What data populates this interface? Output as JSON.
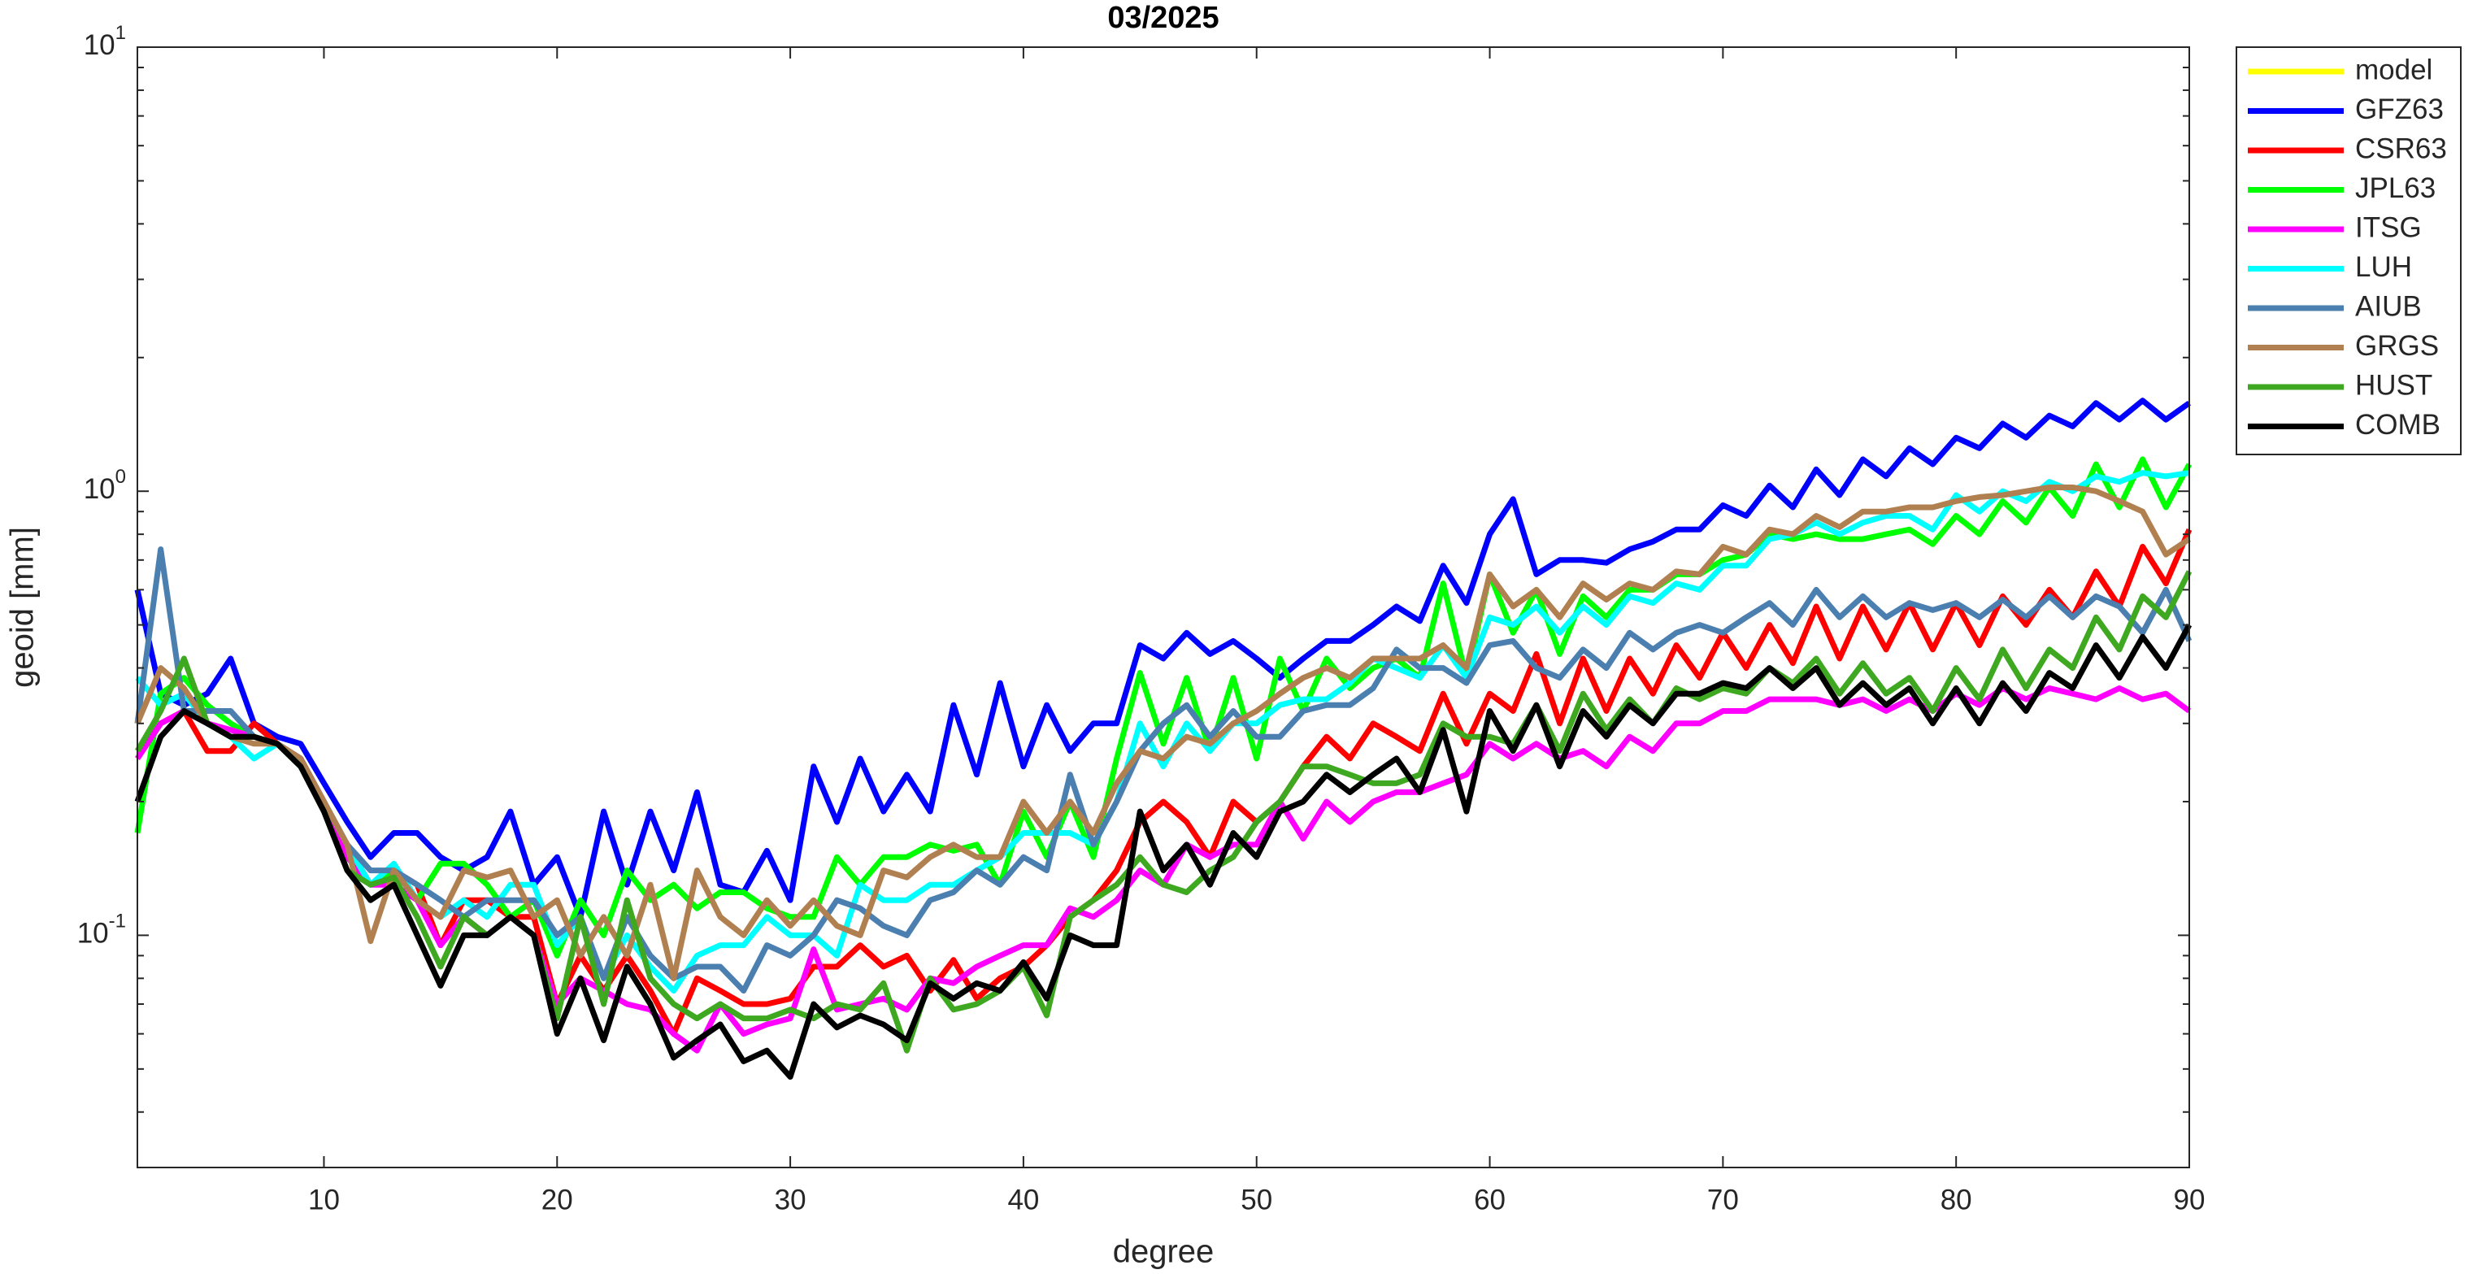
{
  "chart_data": {
    "type": "line",
    "title": "03/2025",
    "xlabel": "degree",
    "ylabel": "geoid [mm]",
    "x": [
      2,
      3,
      4,
      5,
      6,
      7,
      8,
      9,
      10,
      11,
      12,
      13,
      14,
      15,
      16,
      17,
      18,
      19,
      20,
      21,
      22,
      23,
      24,
      25,
      26,
      27,
      28,
      29,
      30,
      31,
      32,
      33,
      34,
      35,
      36,
      37,
      38,
      39,
      40,
      41,
      42,
      43,
      44,
      45,
      46,
      47,
      48,
      49,
      50,
      51,
      52,
      53,
      54,
      55,
      56,
      57,
      58,
      59,
      60,
      61,
      62,
      63,
      64,
      65,
      66,
      67,
      68,
      69,
      70,
      71,
      72,
      73,
      74,
      75,
      76,
      77,
      78,
      79,
      80,
      81,
      82,
      83,
      84,
      85,
      86,
      87,
      88,
      89,
      90
    ],
    "xlim": [
      2,
      90
    ],
    "xticks": [
      10,
      20,
      30,
      40,
      50,
      60,
      70,
      80,
      90
    ],
    "ylim": [
      0.03,
      10
    ],
    "log_y": true,
    "yticks": [
      {
        "value": 0.1,
        "label": "10^-1"
      },
      {
        "value": 1,
        "label": "10^0"
      },
      {
        "value": 10,
        "label": "10^1"
      }
    ],
    "legend": "outside-top-right",
    "series": [
      {
        "name": "model",
        "color": "#ffff00",
        "values": [
          null,
          null,
          null,
          null,
          null,
          null,
          null,
          null,
          null,
          null,
          null,
          null,
          null,
          null,
          null,
          null,
          null,
          null,
          null,
          null,
          null,
          null,
          null,
          null,
          null,
          null,
          null,
          null,
          null,
          null,
          null,
          null,
          null,
          null,
          null,
          null,
          null,
          null,
          null,
          null,
          null,
          null,
          null,
          null,
          null,
          null,
          null,
          null,
          null,
          null,
          null,
          null,
          null,
          null,
          null,
          null,
          null,
          null,
          null,
          null,
          null,
          null,
          null,
          null,
          null,
          null,
          null,
          null,
          null,
          null,
          null,
          null,
          null,
          null,
          null,
          null,
          null,
          null,
          null,
          null,
          null,
          null,
          null,
          null,
          null,
          null,
          null,
          null,
          null
        ]
      },
      {
        "name": "GFZ63",
        "color": "#0000ff",
        "values": [
          0.6,
          0.35,
          0.33,
          0.35,
          0.42,
          0.3,
          0.28,
          0.27,
          0.22,
          0.18,
          0.15,
          0.17,
          0.17,
          0.15,
          0.14,
          0.15,
          0.19,
          0.13,
          0.15,
          0.11,
          0.19,
          0.13,
          0.19,
          0.14,
          0.21,
          0.13,
          0.125,
          0.155,
          0.12,
          0.24,
          0.18,
          0.25,
          0.19,
          0.23,
          0.19,
          0.33,
          0.23,
          0.37,
          0.24,
          0.33,
          0.26,
          0.3,
          0.3,
          0.45,
          0.42,
          0.48,
          0.43,
          0.46,
          0.42,
          0.38,
          0.42,
          0.46,
          0.46,
          0.5,
          0.55,
          0.51,
          0.68,
          0.56,
          0.8,
          0.96,
          0.65,
          0.7,
          0.7,
          0.69,
          0.74,
          0.77,
          0.82,
          0.82,
          0.93,
          0.88,
          1.03,
          0.92,
          1.12,
          0.98,
          1.18,
          1.08,
          1.25,
          1.15,
          1.32,
          1.25,
          1.42,
          1.32,
          1.48,
          1.4,
          1.58,
          1.45,
          1.6,
          1.45,
          1.58
        ]
      },
      {
        "name": "CSR63",
        "color": "#ff0000",
        "values": [
          0.25,
          0.3,
          0.32,
          0.26,
          0.26,
          0.3,
          0.27,
          0.25,
          0.2,
          0.16,
          0.13,
          0.14,
          0.13,
          0.095,
          0.12,
          0.12,
          0.11,
          0.11,
          0.07,
          0.09,
          0.075,
          0.09,
          0.075,
          0.06,
          0.08,
          0.075,
          0.07,
          0.07,
          0.072,
          0.085,
          0.085,
          0.095,
          0.085,
          0.09,
          0.075,
          0.088,
          0.072,
          0.08,
          0.085,
          0.095,
          0.11,
          0.12,
          0.14,
          0.18,
          0.2,
          0.18,
          0.15,
          0.2,
          0.18,
          0.2,
          0.24,
          0.28,
          0.25,
          0.3,
          0.28,
          0.26,
          0.35,
          0.27,
          0.35,
          0.32,
          0.43,
          0.3,
          0.42,
          0.32,
          0.42,
          0.35,
          0.45,
          0.38,
          0.48,
          0.4,
          0.5,
          0.41,
          0.55,
          0.42,
          0.55,
          0.44,
          0.56,
          0.44,
          0.56,
          0.45,
          0.58,
          0.5,
          0.6,
          0.52,
          0.66,
          0.55,
          0.75,
          0.62,
          0.82
        ]
      },
      {
        "name": "JPL63",
        "color": "#00ff00",
        "values": [
          0.17,
          0.35,
          0.38,
          0.33,
          0.3,
          0.28,
          0.27,
          0.24,
          0.2,
          0.15,
          0.13,
          0.14,
          0.12,
          0.145,
          0.145,
          0.13,
          0.11,
          0.12,
          0.09,
          0.12,
          0.1,
          0.14,
          0.12,
          0.13,
          0.115,
          0.125,
          0.125,
          0.115,
          0.11,
          0.11,
          0.15,
          0.13,
          0.15,
          0.15,
          0.16,
          0.155,
          0.16,
          0.13,
          0.19,
          0.15,
          0.2,
          0.15,
          0.25,
          0.39,
          0.27,
          0.38,
          0.26,
          0.38,
          0.25,
          0.42,
          0.32,
          0.42,
          0.36,
          0.4,
          0.42,
          0.38,
          0.62,
          0.38,
          0.65,
          0.48,
          0.6,
          0.43,
          0.58,
          0.52,
          0.6,
          0.6,
          0.65,
          0.65,
          0.7,
          0.72,
          0.8,
          0.78,
          0.8,
          0.78,
          0.78,
          0.8,
          0.82,
          0.76,
          0.88,
          0.8,
          0.95,
          0.85,
          1.02,
          0.88,
          1.15,
          0.92,
          1.18,
          0.92,
          1.15
        ]
      },
      {
        "name": "ITSG",
        "color": "#ff00ff",
        "values": [
          0.25,
          0.3,
          0.32,
          0.3,
          0.29,
          0.28,
          0.27,
          0.25,
          0.2,
          0.15,
          0.13,
          0.13,
          0.12,
          0.095,
          0.11,
          0.1,
          0.11,
          0.1,
          0.07,
          0.08,
          0.075,
          0.07,
          0.068,
          0.06,
          0.055,
          0.07,
          0.06,
          0.063,
          0.065,
          0.093,
          0.068,
          0.07,
          0.072,
          0.068,
          0.08,
          0.078,
          0.085,
          0.09,
          0.095,
          0.095,
          0.115,
          0.11,
          0.12,
          0.14,
          0.13,
          0.16,
          0.15,
          0.16,
          0.16,
          0.2,
          0.165,
          0.2,
          0.18,
          0.2,
          0.21,
          0.21,
          0.22,
          0.23,
          0.27,
          0.25,
          0.27,
          0.25,
          0.26,
          0.24,
          0.28,
          0.26,
          0.3,
          0.3,
          0.32,
          0.32,
          0.34,
          0.34,
          0.34,
          0.33,
          0.34,
          0.32,
          0.34,
          0.32,
          0.35,
          0.33,
          0.36,
          0.34,
          0.36,
          0.35,
          0.34,
          0.36,
          0.34,
          0.35,
          0.32
        ]
      },
      {
        "name": "LUH",
        "color": "#00ffff",
        "values": [
          0.38,
          0.33,
          0.35,
          0.3,
          0.28,
          0.25,
          0.27,
          0.24,
          0.2,
          0.16,
          0.13,
          0.145,
          0.12,
          0.11,
          0.12,
          0.11,
          0.13,
          0.13,
          0.095,
          0.11,
          0.08,
          0.1,
          0.085,
          0.075,
          0.09,
          0.095,
          0.095,
          0.11,
          0.1,
          0.1,
          0.09,
          0.13,
          0.12,
          0.12,
          0.13,
          0.13,
          0.14,
          0.15,
          0.17,
          0.17,
          0.17,
          0.16,
          0.2,
          0.3,
          0.24,
          0.3,
          0.26,
          0.3,
          0.3,
          0.33,
          0.34,
          0.34,
          0.37,
          0.42,
          0.4,
          0.38,
          0.45,
          0.38,
          0.52,
          0.5,
          0.55,
          0.48,
          0.55,
          0.5,
          0.58,
          0.56,
          0.62,
          0.6,
          0.68,
          0.68,
          0.78,
          0.8,
          0.85,
          0.8,
          0.85,
          0.88,
          0.88,
          0.82,
          0.98,
          0.9,
          1.0,
          0.95,
          1.05,
          1.0,
          1.08,
          1.05,
          1.1,
          1.08,
          1.1
        ]
      },
      {
        "name": "AIUB",
        "color": "#4a7fb0",
        "values": [
          0.3,
          0.74,
          0.32,
          0.32,
          0.32,
          0.28,
          0.27,
          0.25,
          0.2,
          0.16,
          0.14,
          0.14,
          0.13,
          0.12,
          0.11,
          0.12,
          0.12,
          0.12,
          0.1,
          0.11,
          0.08,
          0.11,
          0.09,
          0.08,
          0.085,
          0.085,
          0.075,
          0.095,
          0.09,
          0.1,
          0.12,
          0.115,
          0.105,
          0.1,
          0.12,
          0.125,
          0.14,
          0.13,
          0.15,
          0.14,
          0.23,
          0.16,
          0.2,
          0.26,
          0.3,
          0.33,
          0.28,
          0.32,
          0.28,
          0.28,
          0.32,
          0.33,
          0.33,
          0.36,
          0.44,
          0.4,
          0.4,
          0.37,
          0.45,
          0.46,
          0.4,
          0.38,
          0.44,
          0.4,
          0.48,
          0.44,
          0.48,
          0.5,
          0.48,
          0.52,
          0.56,
          0.5,
          0.6,
          0.52,
          0.58,
          0.52,
          0.56,
          0.54,
          0.56,
          0.52,
          0.57,
          0.52,
          0.58,
          0.52,
          0.58,
          0.55,
          0.48,
          0.6,
          0.46
        ]
      },
      {
        "name": "GRGS",
        "color": "#b08050",
        "values": [
          0.3,
          0.4,
          0.36,
          0.3,
          0.28,
          0.27,
          0.27,
          0.25,
          0.2,
          0.16,
          0.097,
          0.14,
          0.12,
          0.11,
          0.14,
          0.135,
          0.14,
          0.11,
          0.12,
          0.09,
          0.11,
          0.09,
          0.13,
          0.08,
          0.14,
          0.11,
          0.1,
          0.12,
          0.105,
          0.12,
          0.105,
          0.1,
          0.14,
          0.135,
          0.15,
          0.16,
          0.15,
          0.15,
          0.2,
          0.17,
          0.2,
          0.17,
          0.22,
          0.26,
          0.25,
          0.28,
          0.27,
          0.3,
          0.32,
          0.35,
          0.38,
          0.4,
          0.38,
          0.42,
          0.42,
          0.42,
          0.45,
          0.4,
          0.65,
          0.55,
          0.6,
          0.52,
          0.62,
          0.57,
          0.62,
          0.6,
          0.66,
          0.65,
          0.75,
          0.72,
          0.82,
          0.8,
          0.88,
          0.83,
          0.9,
          0.9,
          0.92,
          0.92,
          0.95,
          0.97,
          0.98,
          1.0,
          1.02,
          1.02,
          1.0,
          0.95,
          0.9,
          0.72,
          0.78
        ]
      },
      {
        "name": "HUST",
        "color": "#3ea820",
        "values": [
          0.26,
          0.32,
          0.42,
          0.3,
          0.28,
          0.28,
          0.27,
          0.24,
          0.19,
          0.14,
          0.13,
          0.135,
          0.11,
          0.085,
          0.11,
          0.1,
          0.11,
          0.1,
          0.065,
          0.11,
          0.07,
          0.12,
          0.08,
          0.07,
          0.065,
          0.07,
          0.065,
          0.065,
          0.068,
          0.065,
          0.07,
          0.068,
          0.078,
          0.055,
          0.08,
          0.068,
          0.07,
          0.075,
          0.085,
          0.066,
          0.11,
          0.12,
          0.13,
          0.15,
          0.13,
          0.125,
          0.14,
          0.15,
          0.18,
          0.2,
          0.24,
          0.24,
          0.23,
          0.22,
          0.22,
          0.23,
          0.3,
          0.28,
          0.28,
          0.27,
          0.33,
          0.26,
          0.35,
          0.29,
          0.34,
          0.3,
          0.36,
          0.34,
          0.36,
          0.35,
          0.4,
          0.37,
          0.42,
          0.35,
          0.41,
          0.35,
          0.38,
          0.32,
          0.4,
          0.34,
          0.44,
          0.36,
          0.44,
          0.4,
          0.52,
          0.44,
          0.58,
          0.52,
          0.66
        ]
      },
      {
        "name": "COMB",
        "color": "#000000",
        "values": [
          0.2,
          0.28,
          0.32,
          0.3,
          0.28,
          0.28,
          0.27,
          0.24,
          0.19,
          0.14,
          0.12,
          0.13,
          0.1,
          0.077,
          0.1,
          0.1,
          0.11,
          0.1,
          0.06,
          0.08,
          0.058,
          0.085,
          0.07,
          0.053,
          0.058,
          0.063,
          0.052,
          0.055,
          0.048,
          0.07,
          0.062,
          0.066,
          0.063,
          0.058,
          0.078,
          0.072,
          0.078,
          0.075,
          0.087,
          0.072,
          0.1,
          0.095,
          0.095,
          0.19,
          0.14,
          0.16,
          0.13,
          0.17,
          0.15,
          0.19,
          0.2,
          0.23,
          0.21,
          0.23,
          0.25,
          0.21,
          0.29,
          0.19,
          0.32,
          0.26,
          0.33,
          0.24,
          0.32,
          0.28,
          0.33,
          0.3,
          0.35,
          0.35,
          0.37,
          0.36,
          0.4,
          0.36,
          0.4,
          0.33,
          0.37,
          0.33,
          0.36,
          0.3,
          0.36,
          0.3,
          0.37,
          0.32,
          0.39,
          0.36,
          0.45,
          0.38,
          0.47,
          0.4,
          0.5
        ]
      }
    ]
  }
}
